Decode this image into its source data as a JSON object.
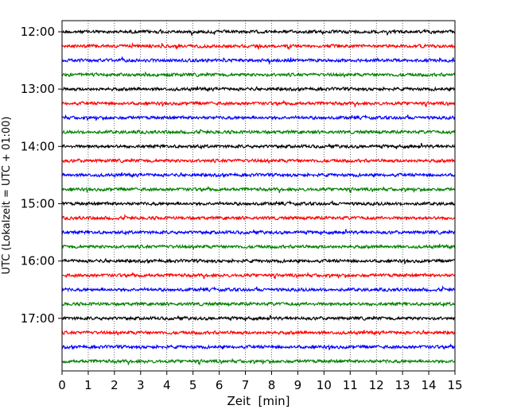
{
  "chart_data": {
    "type": "line",
    "title": "",
    "xlabel": "Zeit  [min]",
    "ylabel": "UTC (Lokalzeit = UTC + 01:00)",
    "xlim": [
      0,
      15
    ],
    "xticks": [
      "0",
      "1",
      "2",
      "3",
      "4",
      "5",
      "6",
      "7",
      "8",
      "9",
      "10",
      "11",
      "12",
      "13",
      "14",
      "15"
    ],
    "ytick_labels": [
      "12:00",
      "13:00",
      "14:00",
      "15:00",
      "16:00",
      "17:00"
    ],
    "grid": {
      "x": true,
      "y": false,
      "style": "dotted"
    },
    "row_interval_min": 15,
    "start_time": "12:00",
    "row_count": 24,
    "row_colors": [
      "#000000",
      "#ff0000",
      "#0000ff",
      "#008000"
    ],
    "series": [
      {
        "values": [],
        "row": "12:00"
      },
      {
        "values": [],
        "row": "12:15"
      },
      {
        "values": [],
        "row": "12:30"
      },
      {
        "values": [],
        "row": "12:45"
      },
      {
        "values": [],
        "row": "13:00"
      },
      {
        "values": [],
        "row": "13:15"
      },
      {
        "values": [],
        "row": "13:30"
      },
      {
        "values": [],
        "row": "13:45"
      },
      {
        "values": [],
        "row": "14:00"
      },
      {
        "values": [],
        "row": "14:15"
      },
      {
        "values": [],
        "row": "14:30"
      },
      {
        "values": [],
        "row": "14:45"
      },
      {
        "values": [],
        "row": "15:00"
      },
      {
        "values": [],
        "row": "15:15"
      },
      {
        "values": [],
        "row": "15:30"
      },
      {
        "values": [],
        "row": "15:45"
      },
      {
        "values": [],
        "row": "16:00"
      },
      {
        "values": [],
        "row": "16:15"
      },
      {
        "values": [],
        "row": "16:30"
      },
      {
        "values": [],
        "row": "16:45"
      },
      {
        "values": [],
        "row": "17:00"
      },
      {
        "values": [],
        "row": "17:15"
      },
      {
        "values": [],
        "row": "17:30"
      },
      {
        "values": [],
        "row": "17:45"
      }
    ]
  }
}
